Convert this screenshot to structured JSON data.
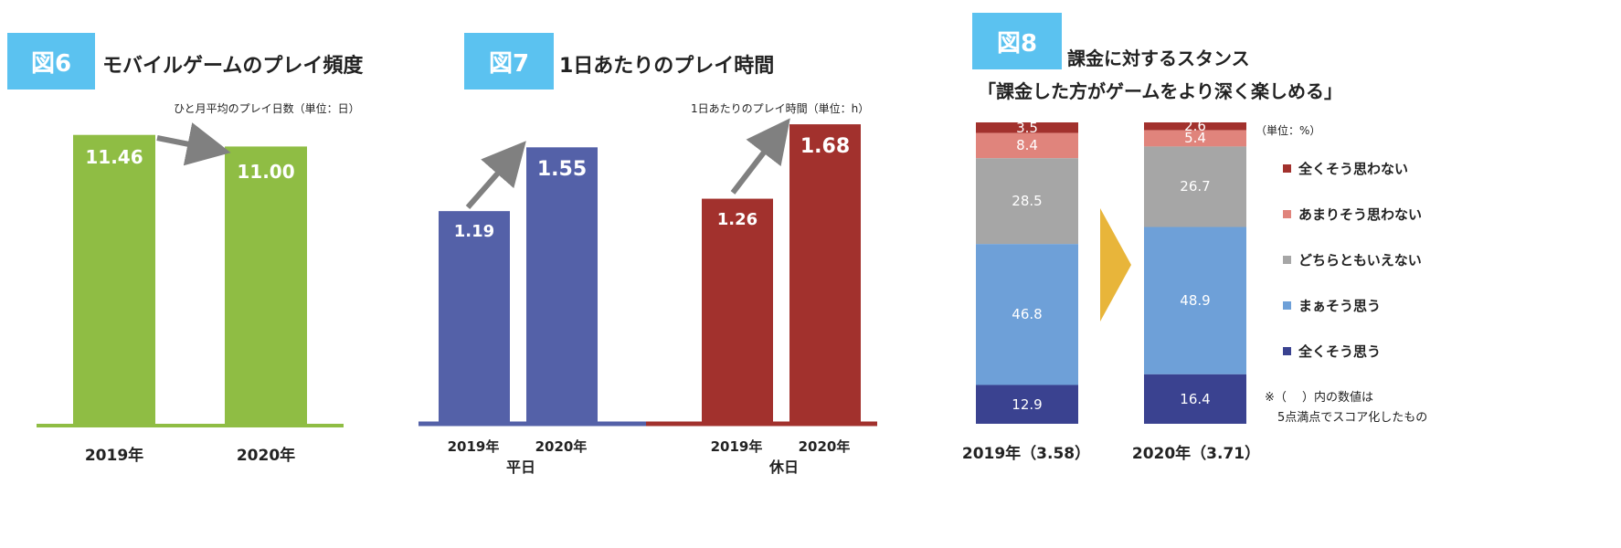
{
  "fig6": {
    "badge": "図6",
    "title": "モバイルゲームのプレイ頻度",
    "unit": "ひと月平均のプレイ日数（単位：日）",
    "colors": {
      "bar": "#8fbd44",
      "arrow": "#808080"
    }
  },
  "fig7": {
    "badge": "図7",
    "title": "1日あたりのプレイ時間",
    "unit": "1日あたりのプレイ時間（単位：h）",
    "group_weekday": "平日",
    "group_holiday": "休日",
    "colors": {
      "weekday": "#5461a8",
      "holiday": "#a2312d",
      "arrow": "#808080"
    }
  },
  "fig8": {
    "badge": "図8",
    "title": "課金に対するスタンス",
    "subtitle": "「課金した方がゲームをより深く楽しめる」",
    "unit": "（単位：%）",
    "note_line1": "※（　 ）内の数値は",
    "note_line2": "5点満点でスコア化したもの",
    "colors": {
      "chevron": "#e8b53a"
    }
  },
  "chart_data": [
    {
      "id": "fig6",
      "type": "bar",
      "categories": [
        "2019年",
        "2020年"
      ],
      "values": [
        11.46,
        11.0
      ],
      "value_labels": [
        "11.46",
        "11.00"
      ]
    },
    {
      "id": "fig7",
      "type": "bar",
      "groups": [
        "平日",
        "休日"
      ],
      "categories": [
        "2019年",
        "2020年",
        "2019年",
        "2020年"
      ],
      "values": [
        1.19,
        1.55,
        1.26,
        1.68
      ],
      "value_labels": [
        "1.19",
        "1.55",
        "1.26",
        "1.68"
      ]
    },
    {
      "id": "fig8",
      "type": "bar",
      "stacked": true,
      "categories": [
        "2019年（3.58）",
        "2020年（3.71）"
      ],
      "series": [
        {
          "name": "全くそう思わない",
          "color": "#a2312d",
          "values": [
            3.5,
            2.6
          ],
          "labels": [
            "3.5",
            "2.6"
          ]
        },
        {
          "name": "あまりそう思わない",
          "color": "#e0847c",
          "values": [
            8.4,
            5.4
          ],
          "labels": [
            "8.4",
            "5.4"
          ]
        },
        {
          "name": "どちらともいえない",
          "color": "#a6a6a6",
          "values": [
            28.5,
            26.7
          ],
          "labels": [
            "28.5",
            "26.7"
          ]
        },
        {
          "name": "まぁそう思う",
          "color": "#6ea0d8",
          "values": [
            46.8,
            48.9
          ],
          "labels": [
            "46.8",
            "48.9"
          ]
        },
        {
          "name": "全くそう思う",
          "color": "#3a4290",
          "values": [
            12.9,
            16.4
          ],
          "labels": [
            "12.9",
            "16.4"
          ]
        }
      ]
    }
  ]
}
